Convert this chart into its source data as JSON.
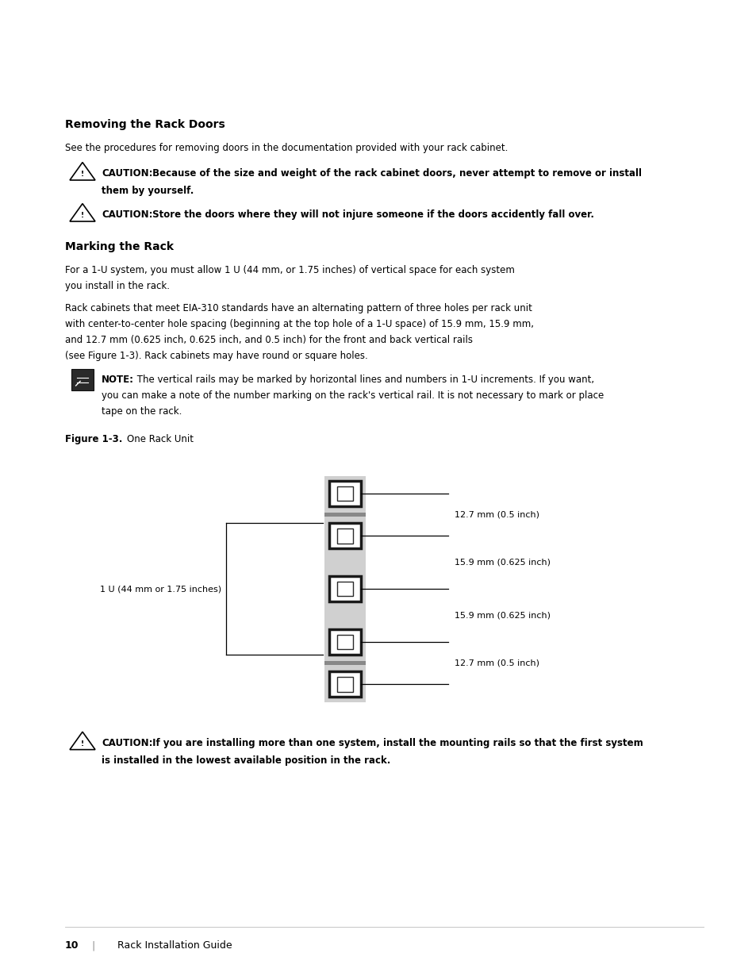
{
  "bg_color": "#ffffff",
  "section1_title": "Removing the Rack Doors",
  "section1_body": "See the procedures for removing doors in the documentation provided with your rack cabinet.",
  "caution1_bold": "CAUTION:",
  "caution1_rest": " Because of the size and weight of the rack cabinet doors, never attempt to remove or install",
  "caution1_line2": "them by yourself.",
  "caution2_bold": "CAUTION:",
  "caution2_rest": " Store the doors where they will not injure someone if the doors accidently fall over.",
  "section2_title": "Marking the Rack",
  "section2_body1_l1": "For a 1-U system, you must allow 1 U (44 mm, or 1.75 inches) of vertical space for each system",
  "section2_body1_l2": "you install in the rack.",
  "section2_body2_l1": "Rack cabinets that meet EIA-310 standards have an alternating pattern of three holes per rack unit",
  "section2_body2_l2": "with center-to-center hole spacing (beginning at the top hole of a 1-U space) of 15.9 mm, 15.9 mm,",
  "section2_body2_l3": "and 12.7 mm (0.625 inch, 0.625 inch, and 0.5 inch) for the front and back vertical rails",
  "section2_body2_l4": "(see Figure 1-3). Rack cabinets may have round or square holes.",
  "note_bold": "NOTE:",
  "note_l1": " The vertical rails may be marked by horizontal lines and numbers in 1-U increments. If you want,",
  "note_l2": "you can make a note of the number marking on the rack's vertical rail. It is not necessary to mark or place",
  "note_l3": "tape on the rack.",
  "figure_bold": "Figure 1-3.",
  "figure_rest": "    One Rack Unit",
  "dim_label1": "12.7 mm (0.5 inch)",
  "dim_label2": "15.9 mm (0.625 inch)",
  "dim_label3": "15.9 mm (0.625 inch)",
  "dim_label4": "12.7 mm (0.5 inch)",
  "bracket_label": "1 U (44 mm or 1.75 inches)",
  "caution3_bold": "CAUTION:",
  "caution3_rest": " If you are installing more than one system, install the mounting rails so that the first system",
  "caution3_line2": "is installed in the lowest available position in the rack.",
  "footer_page": "10",
  "footer_bar": "   |",
  "footer_text": "    Rack Installation Guide",
  "text_color": "#000000",
  "rail_gray": "#d0d0d0",
  "divider_gray": "#888888"
}
